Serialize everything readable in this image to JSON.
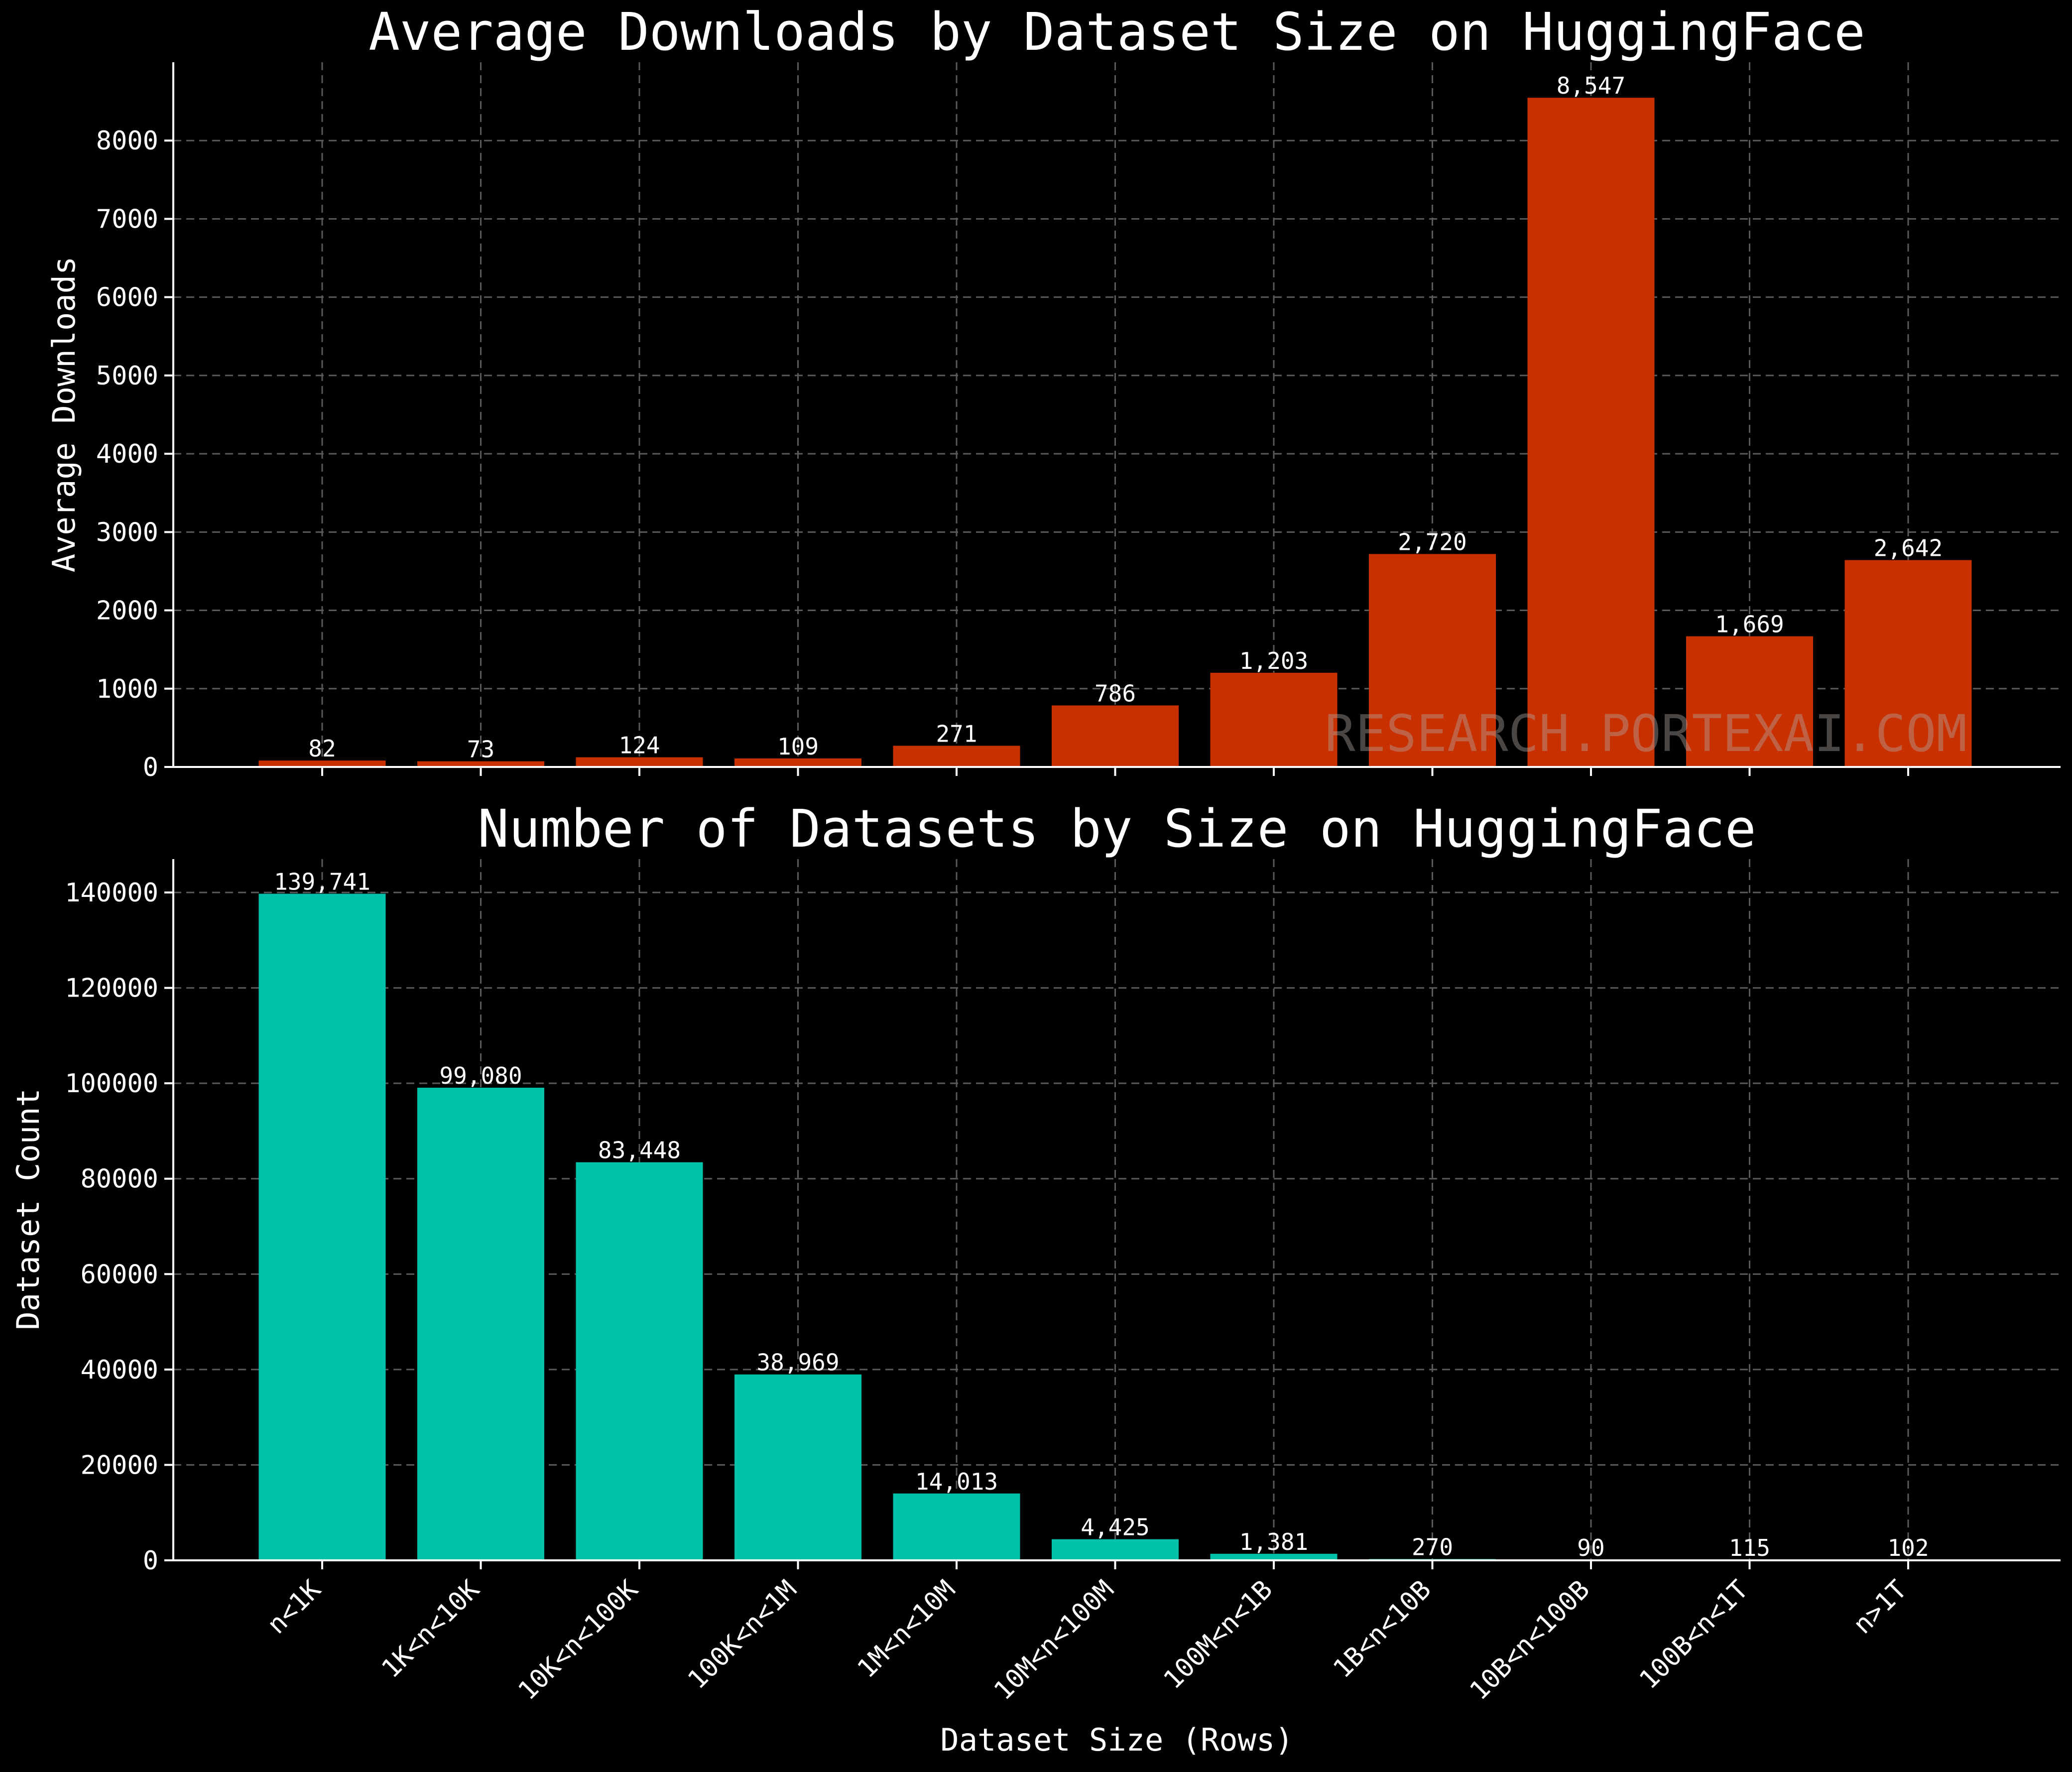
{
  "chart_data": [
    {
      "type": "bar",
      "title": "Average Downloads by Dataset Size on HuggingFace",
      "xlabel": "",
      "ylabel": "Average Downloads",
      "ylim": [
        0,
        9000
      ],
      "yticks": [
        0,
        1000,
        2000,
        3000,
        4000,
        5000,
        6000,
        7000,
        8000
      ],
      "grid": true,
      "bar_color": "#c93000",
      "categories": [
        "n<1K",
        "1K<n<10K",
        "10K<n<100K",
        "100K<n<1M",
        "1M<n<10M",
        "10M<n<100M",
        "100M<n<1B",
        "1B<n<10B",
        "10B<n<100B",
        "100B<n<1T",
        "n>1T"
      ],
      "values": [
        82,
        73,
        124,
        109,
        271,
        786,
        1203,
        2720,
        8547,
        1669,
        2642
      ],
      "value_labels": [
        "82",
        "73",
        "124",
        "109",
        "271",
        "786",
        "1,203",
        "2,720",
        "8,547",
        "1,669",
        "2,642"
      ],
      "watermark": "RESEARCH.PORTEXAI.COM"
    },
    {
      "type": "bar",
      "title": "Number of Datasets by Size on HuggingFace",
      "xlabel": "Dataset Size (Rows)",
      "ylabel": "Dataset Count",
      "ylim": [
        0,
        147000
      ],
      "yticks": [
        0,
        20000,
        40000,
        60000,
        80000,
        100000,
        120000,
        140000
      ],
      "grid": true,
      "bar_color": "#00c2aa",
      "categories": [
        "n<1K",
        "1K<n<10K",
        "10K<n<100K",
        "100K<n<1M",
        "1M<n<10M",
        "10M<n<100M",
        "100M<n<1B",
        "1B<n<10B",
        "10B<n<100B",
        "100B<n<1T",
        "n>1T"
      ],
      "values": [
        139741,
        99080,
        83448,
        38969,
        14013,
        4425,
        1381,
        270,
        90,
        115,
        102
      ],
      "value_labels": [
        "139,741",
        "99,080",
        "83,448",
        "38,969",
        "14,013",
        "4,425",
        "1,381",
        "270",
        "90",
        "115",
        "102"
      ]
    }
  ]
}
